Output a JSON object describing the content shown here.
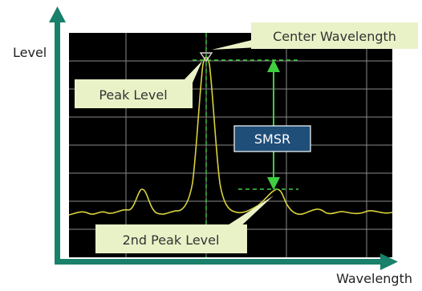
{
  "labels": {
    "y_axis": "Level",
    "x_axis": "Wavelength",
    "center_wavelength": "Center Wavelength",
    "peak_level": "Peak Level",
    "smsr": "SMSR",
    "second_peak_level": "2nd Peak Level"
  },
  "colors": {
    "axis": "#19806b",
    "screen_background": "#000000",
    "grid": "#8a8a8a",
    "trace": "#d8d23a",
    "marker": "#3fce3f",
    "callout_fill": "#e9f2c7",
    "smsr_badge": "#1f4e79"
  }
}
